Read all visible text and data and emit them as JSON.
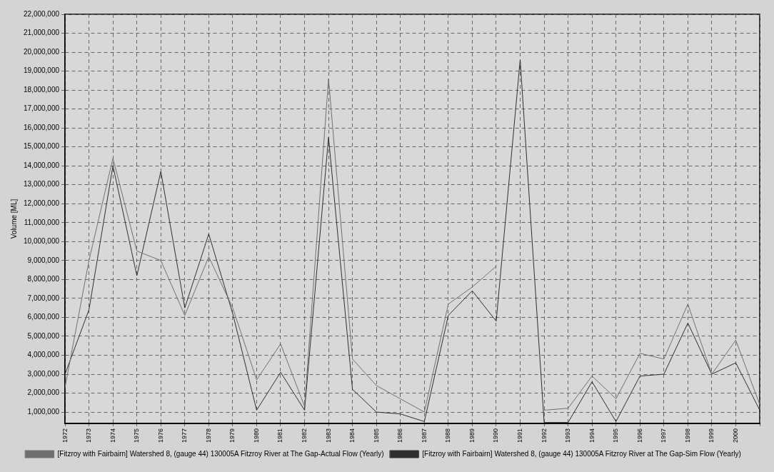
{
  "chart_data": {
    "type": "line",
    "ylabel": "Volume [ML]",
    "categories": [
      "1972",
      "1973",
      "1974",
      "1975",
      "1976",
      "1977",
      "1978",
      "1979",
      "1980",
      "1981",
      "1982",
      "1983",
      "1984",
      "1985",
      "1986",
      "1987",
      "1988",
      "1989",
      "1990",
      "1991",
      "1992",
      "1993",
      "1994",
      "1995",
      "1996",
      "1997",
      "1998",
      "1999",
      "2000",
      null
    ],
    "series": [
      {
        "name": "[Fitzroy with Fairbairn] Watershed 8, (gauge 44) 130005A Fitzroy River at The Gap-Actual Flow (Yearly)",
        "color": "#707070",
        "values": [
          2300000,
          9000000,
          14400000,
          9500000,
          9000000,
          6100000,
          9200000,
          6500000,
          2700000,
          4600000,
          1300000,
          18600000,
          3800000,
          2400000,
          1700000,
          1000000,
          6700000,
          7600000,
          8700000,
          null,
          1100000,
          1200000,
          2900000,
          1700000,
          4100000,
          3800000,
          6700000,
          3000000,
          4800000,
          1400000
        ]
      },
      {
        "name": "[Fitzroy with Fairbairn] Watershed 8, (gauge 44) 130005A Fitzroy River at The Gap-Sim Flow (Yearly)",
        "color": "#2e2e2e",
        "values": [
          3000000,
          6400000,
          14000000,
          8200000,
          13700000,
          6500000,
          10400000,
          6200000,
          1100000,
          3100000,
          1100000,
          15500000,
          2200000,
          1000000,
          900000,
          500000,
          6100000,
          7400000,
          5800000,
          19600000,
          450000,
          450000,
          2600000,
          500000,
          2900000,
          3000000,
          5700000,
          3000000,
          3600000,
          1100000
        ]
      }
    ],
    "ylim": [
      400000,
      22000000
    ],
    "yticks": [
      {
        "value": 1000000,
        "label": "1,000,000"
      },
      {
        "value": 2000000,
        "label": "2,000,000"
      },
      {
        "value": 3000000,
        "label": "3,000,000"
      },
      {
        "value": 4000000,
        "label": "4,000,000"
      },
      {
        "value": 5000000,
        "label": "5,000,000"
      },
      {
        "value": 6000000,
        "label": "6,000,000"
      },
      {
        "value": 7000000,
        "label": "7,000,000"
      },
      {
        "value": 8000000,
        "label": "8,000,000"
      },
      {
        "value": 9000000,
        "label": "9,000,000"
      },
      {
        "value": 10000000,
        "label": "10,000,000"
      },
      {
        "value": 11000000,
        "label": "11,000,000"
      },
      {
        "value": 12000000,
        "label": "12,000,000"
      },
      {
        "value": 13000000,
        "label": "13,000,000"
      },
      {
        "value": 14000000,
        "label": "14,000,000"
      },
      {
        "value": 15000000,
        "label": "15,000,000"
      },
      {
        "value": 16000000,
        "label": "16,000,000"
      },
      {
        "value": 17000000,
        "label": "17,000,000"
      },
      {
        "value": 18000000,
        "label": "18,000,000"
      },
      {
        "value": 19000000,
        "label": "19,000,000"
      },
      {
        "value": 20000000,
        "label": "20,000,000"
      },
      {
        "value": 21000000,
        "label": "21,000,000"
      },
      {
        "value": 22000000,
        "label": "22,000,000"
      }
    ],
    "grid": true,
    "legend": "bottom",
    "line_style": "solid"
  }
}
